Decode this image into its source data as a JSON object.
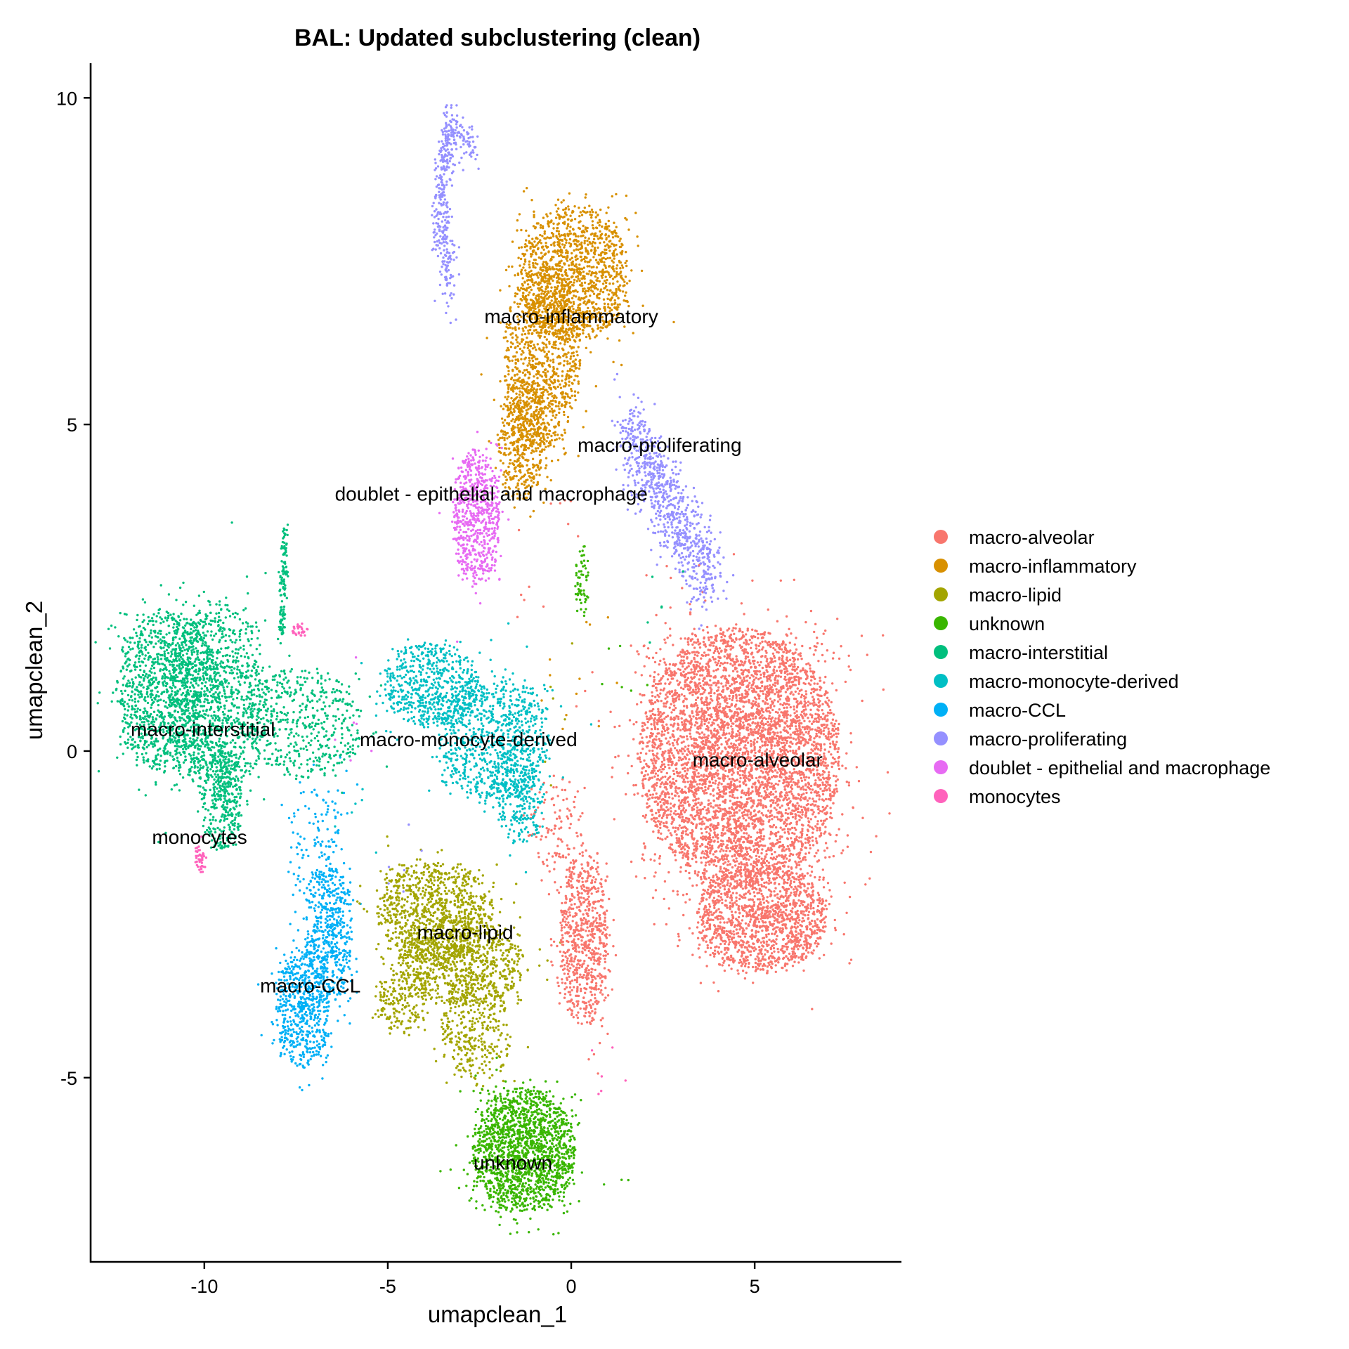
{
  "chart_data": {
    "type": "scatter",
    "title": "BAL: Updated subclustering (clean)",
    "xlabel": "umapclean_1",
    "ylabel": "umapclean_2",
    "xlim": [
      -13.08,
      9.0
    ],
    "ylim": [
      -7.82,
      10.53
    ],
    "xticks": [
      {
        "value": -10,
        "label": "-10"
      },
      {
        "value": -5,
        "label": "-5"
      },
      {
        "value": 0,
        "label": "0"
      },
      {
        "value": 5,
        "label": "5"
      }
    ],
    "yticks": [
      {
        "value": 10,
        "label": "10"
      },
      {
        "value": 5,
        "label": "5"
      },
      {
        "value": 0,
        "label": "0"
      },
      {
        "value": -5,
        "label": "-5"
      }
    ],
    "grid": false,
    "legend_position": "right",
    "series": [
      {
        "name": "macro-alveolar",
        "color": "#F8766D",
        "label_at": [
          5.08,
          -0.13
        ],
        "blobs": [
          [
            4.6,
            -0.1,
            1.45,
            1.05,
            5200
          ],
          [
            5.2,
            -2.55,
            0.95,
            0.45,
            1400
          ],
          [
            0.35,
            -2.9,
            0.35,
            0.7,
            700
          ],
          [
            -0.4,
            -1.3,
            0.4,
            0.5,
            120
          ]
        ],
        "segments": []
      },
      {
        "name": "macro-inflammatory",
        "color": "#D89000",
        "label_at": [
          0.0,
          6.66
        ],
        "blobs": [
          [
            0.05,
            7.3,
            0.8,
            0.55,
            1300
          ],
          [
            -0.8,
            6.0,
            0.55,
            0.75,
            1000
          ],
          [
            -1.35,
            4.8,
            0.35,
            0.5,
            450
          ]
        ],
        "segments": []
      },
      {
        "name": "macro-lipid",
        "color": "#A3A500",
        "label_at": [
          -2.89,
          -2.77
        ],
        "blobs": [
          [
            -3.7,
            -2.45,
            0.85,
            0.4,
            900
          ],
          [
            -3.0,
            -3.25,
            0.9,
            0.35,
            800
          ],
          [
            -2.6,
            -4.3,
            0.5,
            0.45,
            350
          ],
          [
            -4.6,
            -3.8,
            0.4,
            0.3,
            200
          ]
        ],
        "segments": []
      },
      {
        "name": "unknown",
        "color": "#39B600",
        "label_at": [
          -1.59,
          -6.3
        ],
        "blobs": [
          [
            -1.3,
            -6.1,
            0.75,
            0.5,
            1700
          ],
          [
            0.3,
            2.6,
            0.1,
            0.3,
            60
          ]
        ],
        "segments": []
      },
      {
        "name": "macro-interstitial",
        "color": "#00BF7D",
        "label_at": [
          -10.04,
          0.34
        ],
        "blobs": [
          [
            -11.0,
            0.9,
            0.75,
            0.65,
            1300
          ],
          [
            -9.6,
            0.8,
            0.7,
            0.8,
            900
          ],
          [
            -9.5,
            -0.7,
            0.3,
            0.45,
            350
          ],
          [
            -7.4,
            0.4,
            0.9,
            0.45,
            500
          ]
        ],
        "segments": [
          [
            -7.8,
            3.4,
            -7.9,
            1.7,
            0.05,
            120
          ]
        ]
      },
      {
        "name": "macro-monocyte-derived",
        "color": "#00BFC4",
        "label_at": [
          -2.8,
          0.18
        ],
        "blobs": [
          [
            -3.8,
            1.0,
            0.7,
            0.35,
            600
          ],
          [
            -2.1,
            0.2,
            0.8,
            0.5,
            800
          ],
          [
            -1.4,
            -0.6,
            0.35,
            0.45,
            300
          ]
        ],
        "segments": []
      },
      {
        "name": "macro-CCL",
        "color": "#00B0F6",
        "label_at": [
          -7.11,
          -3.59
        ],
        "blobs": [
          [
            -6.6,
            -2.8,
            0.35,
            0.55,
            500
          ],
          [
            -7.3,
            -3.9,
            0.4,
            0.5,
            600
          ],
          [
            -7.0,
            -1.4,
            0.4,
            0.5,
            120
          ]
        ],
        "segments": []
      },
      {
        "name": "macro-proliferating",
        "color": "#9590FF",
        "label_at": [
          2.41,
          4.69
        ],
        "blobs": [],
        "segments": [
          [
            -3.3,
            9.6,
            -3.6,
            8.3,
            0.12,
            170
          ],
          [
            -3.6,
            8.3,
            -3.3,
            7.0,
            0.15,
            150
          ],
          [
            -3.4,
            9.6,
            -2.6,
            9.2,
            0.12,
            90
          ],
          [
            1.5,
            5.0,
            3.8,
            2.6,
            0.25,
            800
          ]
        ]
      },
      {
        "name": "doublet - epithelial and macrophage",
        "color": "#E76BF3",
        "label_at": [
          -2.18,
          3.94
        ],
        "blobs": [
          [
            -2.6,
            3.6,
            0.35,
            0.55,
            650
          ]
        ],
        "segments": []
      },
      {
        "name": "monocytes",
        "color": "#FF62BC",
        "label_at": [
          -10.13,
          -1.31
        ],
        "blobs": [
          [
            -10.1,
            -1.65,
            0.08,
            0.12,
            40
          ],
          [
            -7.4,
            1.85,
            0.12,
            0.06,
            30
          ]
        ],
        "segments": []
      }
    ]
  }
}
